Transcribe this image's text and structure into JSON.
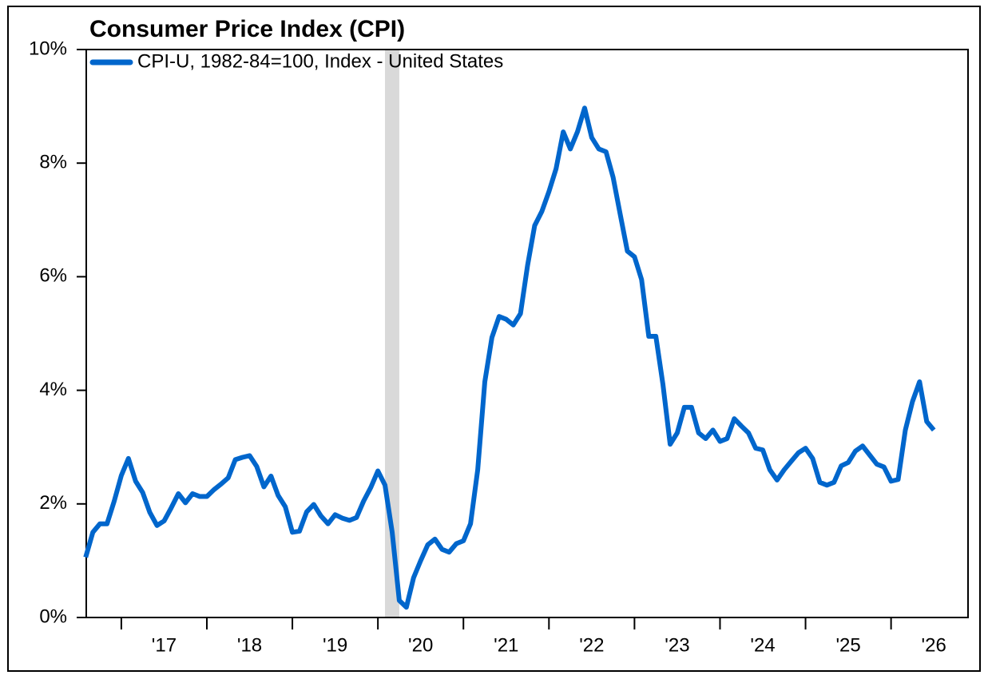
{
  "chart_data": {
    "type": "line",
    "title": "Consumer Price Index (CPI)",
    "x": [
      2016.583,
      2016.667,
      2016.75,
      2016.833,
      2016.917,
      2017.0,
      2017.083,
      2017.167,
      2017.25,
      2017.333,
      2017.417,
      2017.5,
      2017.583,
      2017.667,
      2017.75,
      2017.833,
      2017.917,
      2018.0,
      2018.083,
      2018.167,
      2018.25,
      2018.333,
      2018.417,
      2018.5,
      2018.583,
      2018.667,
      2018.75,
      2018.833,
      2018.917,
      2019.0,
      2019.083,
      2019.167,
      2019.25,
      2019.333,
      2019.417,
      2019.5,
      2019.583,
      2019.667,
      2019.75,
      2019.833,
      2019.917,
      2020.0,
      2020.083,
      2020.167,
      2020.25,
      2020.333,
      2020.417,
      2020.5,
      2020.583,
      2020.667,
      2020.75,
      2020.833,
      2020.917,
      2021.0,
      2021.083,
      2021.167,
      2021.25,
      2021.333,
      2021.417,
      2021.5,
      2021.583,
      2021.667,
      2021.75,
      2021.833,
      2021.917,
      2022.0,
      2022.083,
      2022.167,
      2022.25,
      2022.333,
      2022.417,
      2022.5,
      2022.583,
      2022.667,
      2022.75,
      2022.833,
      2022.917,
      2023.0,
      2023.083,
      2023.167,
      2023.25,
      2023.333,
      2023.417,
      2023.5,
      2023.583,
      2023.667,
      2023.75,
      2023.833,
      2023.917,
      2024.0,
      2024.083,
      2024.167,
      2024.25,
      2024.333,
      2024.417,
      2024.5,
      2024.583,
      2024.667,
      2024.75,
      2024.833,
      2024.917,
      2025.0,
      2025.083,
      2025.167,
      2025.25,
      2025.333,
      2025.417,
      2025.5,
      2025.583,
      2025.667,
      2025.75,
      2025.833,
      2025.917,
      2026.0,
      2026.083,
      2026.167,
      2026.25,
      2026.333,
      2026.417,
      2026.5
    ],
    "series": [
      {
        "name": "CPI-U, 1982-84=100, Index - United States",
        "color": "#0066cc",
        "values": [
          1.06,
          1.5,
          1.65,
          1.65,
          2.05,
          2.5,
          2.8,
          2.4,
          2.2,
          1.85,
          1.62,
          1.7,
          1.93,
          2.18,
          2.02,
          2.18,
          2.13,
          2.13,
          2.25,
          2.35,
          2.46,
          2.78,
          2.82,
          2.85,
          2.66,
          2.3,
          2.49,
          2.15,
          1.95,
          1.5,
          1.52,
          1.86,
          1.99,
          1.79,
          1.65,
          1.81,
          1.75,
          1.71,
          1.76,
          2.05,
          2.29,
          2.58,
          2.33,
          1.5,
          0.3,
          0.18,
          0.7,
          1.0,
          1.28,
          1.38,
          1.2,
          1.15,
          1.3,
          1.35,
          1.65,
          2.6,
          4.15,
          4.93,
          5.3,
          5.25,
          5.15,
          5.35,
          6.2,
          6.9,
          7.15,
          7.5,
          7.9,
          8.55,
          8.25,
          8.55,
          8.97,
          8.45,
          8.25,
          8.2,
          7.75,
          7.1,
          6.45,
          6.35,
          5.95,
          4.95,
          4.95,
          4.1,
          3.05,
          3.25,
          3.7,
          3.7,
          3.25,
          3.15,
          3.3,
          3.1,
          3.15,
          3.5,
          3.37,
          3.25,
          2.98,
          2.95,
          2.6,
          2.42,
          2.6,
          2.75,
          2.9,
          2.98,
          2.8,
          2.38,
          2.33,
          2.38,
          2.67,
          2.73,
          2.93,
          3.02,
          2.86,
          2.7,
          2.65,
          2.4,
          2.43,
          3.3,
          3.8,
          4.15,
          3.45,
          3.3
        ]
      }
    ],
    "recession_shading": [
      {
        "start": 2020.083,
        "end": 2020.25,
        "color": "#d9d9d9"
      }
    ],
    "xlim": [
      2016.59,
      2026.9
    ],
    "xticks": [
      {
        "value": 2017,
        "label": "'17"
      },
      {
        "value": 2018,
        "label": "'18"
      },
      {
        "value": 2019,
        "label": "'19"
      },
      {
        "value": 2020,
        "label": "'20"
      },
      {
        "value": 2021,
        "label": "'21"
      },
      {
        "value": 2022,
        "label": "'22"
      },
      {
        "value": 2023,
        "label": "'23"
      },
      {
        "value": 2024,
        "label": "'24"
      },
      {
        "value": 2025,
        "label": "'25"
      },
      {
        "value": 2026,
        "label": "'26"
      }
    ],
    "ylim": [
      0,
      10
    ],
    "yticks": [
      {
        "value": 0,
        "label": "0%"
      },
      {
        "value": 2,
        "label": "2%"
      },
      {
        "value": 4,
        "label": "4%"
      },
      {
        "value": 6,
        "label": "6%"
      },
      {
        "value": 8,
        "label": "8%"
      },
      {
        "value": 10,
        "label": "10%"
      }
    ],
    "legend": "top-left"
  }
}
